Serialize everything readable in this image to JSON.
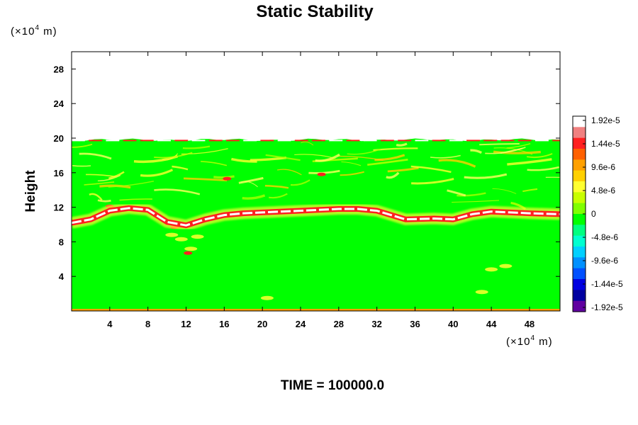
{
  "chart_data": {
    "type": "heatmap",
    "title": "Static Stability",
    "ylabel": "Height",
    "xunit": {
      "prefix": "(×10",
      "exp": "4",
      "suffix": " m)"
    },
    "yunit": {
      "prefix": "(×10",
      "exp": "4",
      "suffix": " m)"
    },
    "footer": "TIME = 100000.0",
    "xlim": [
      0,
      51.2
    ],
    "ylim": [
      0,
      30
    ],
    "xticks": [
      4,
      8,
      12,
      16,
      20,
      24,
      28,
      32,
      36,
      40,
      44,
      48
    ],
    "yticks": [
      4,
      8,
      12,
      16,
      20,
      24,
      28
    ],
    "colorbar": {
      "labels": [
        "1.92e-5",
        "1.44e-5",
        "9.6e-6",
        "4.8e-6",
        "0",
        "-4.8e-6",
        "-9.6e-6",
        "-1.44e-5",
        "-1.92e-5"
      ],
      "colors": [
        "#ffffff",
        "#f08080",
        "#ff2020",
        "#ff6000",
        "#ffa000",
        "#ffd000",
        "#ffff30",
        "#c8ff00",
        "#80ff00",
        "#00ff00",
        "#00ff80",
        "#00ffd0",
        "#00d0ff",
        "#0090ff",
        "#0050ff",
        "#0000e0",
        "#0000a0",
        "#6000a0"
      ]
    },
    "field": {
      "background_value": 0,
      "top_of_perturbed_layer": 19.8,
      "stable_layer": {
        "x": [
          0,
          2,
          4,
          6,
          8,
          10,
          12,
          14,
          16,
          18,
          20,
          24,
          28,
          30,
          32,
          35,
          38,
          40,
          42,
          44,
          46,
          48,
          51.2
        ],
        "y": [
          10.2,
          10.6,
          11.6,
          11.9,
          11.7,
          10.3,
          9.9,
          10.6,
          11.1,
          11.3,
          11.4,
          11.6,
          11.8,
          11.8,
          11.6,
          10.6,
          10.7,
          10.6,
          11.2,
          11.5,
          11.4,
          11.3,
          11.2
        ]
      }
    }
  }
}
